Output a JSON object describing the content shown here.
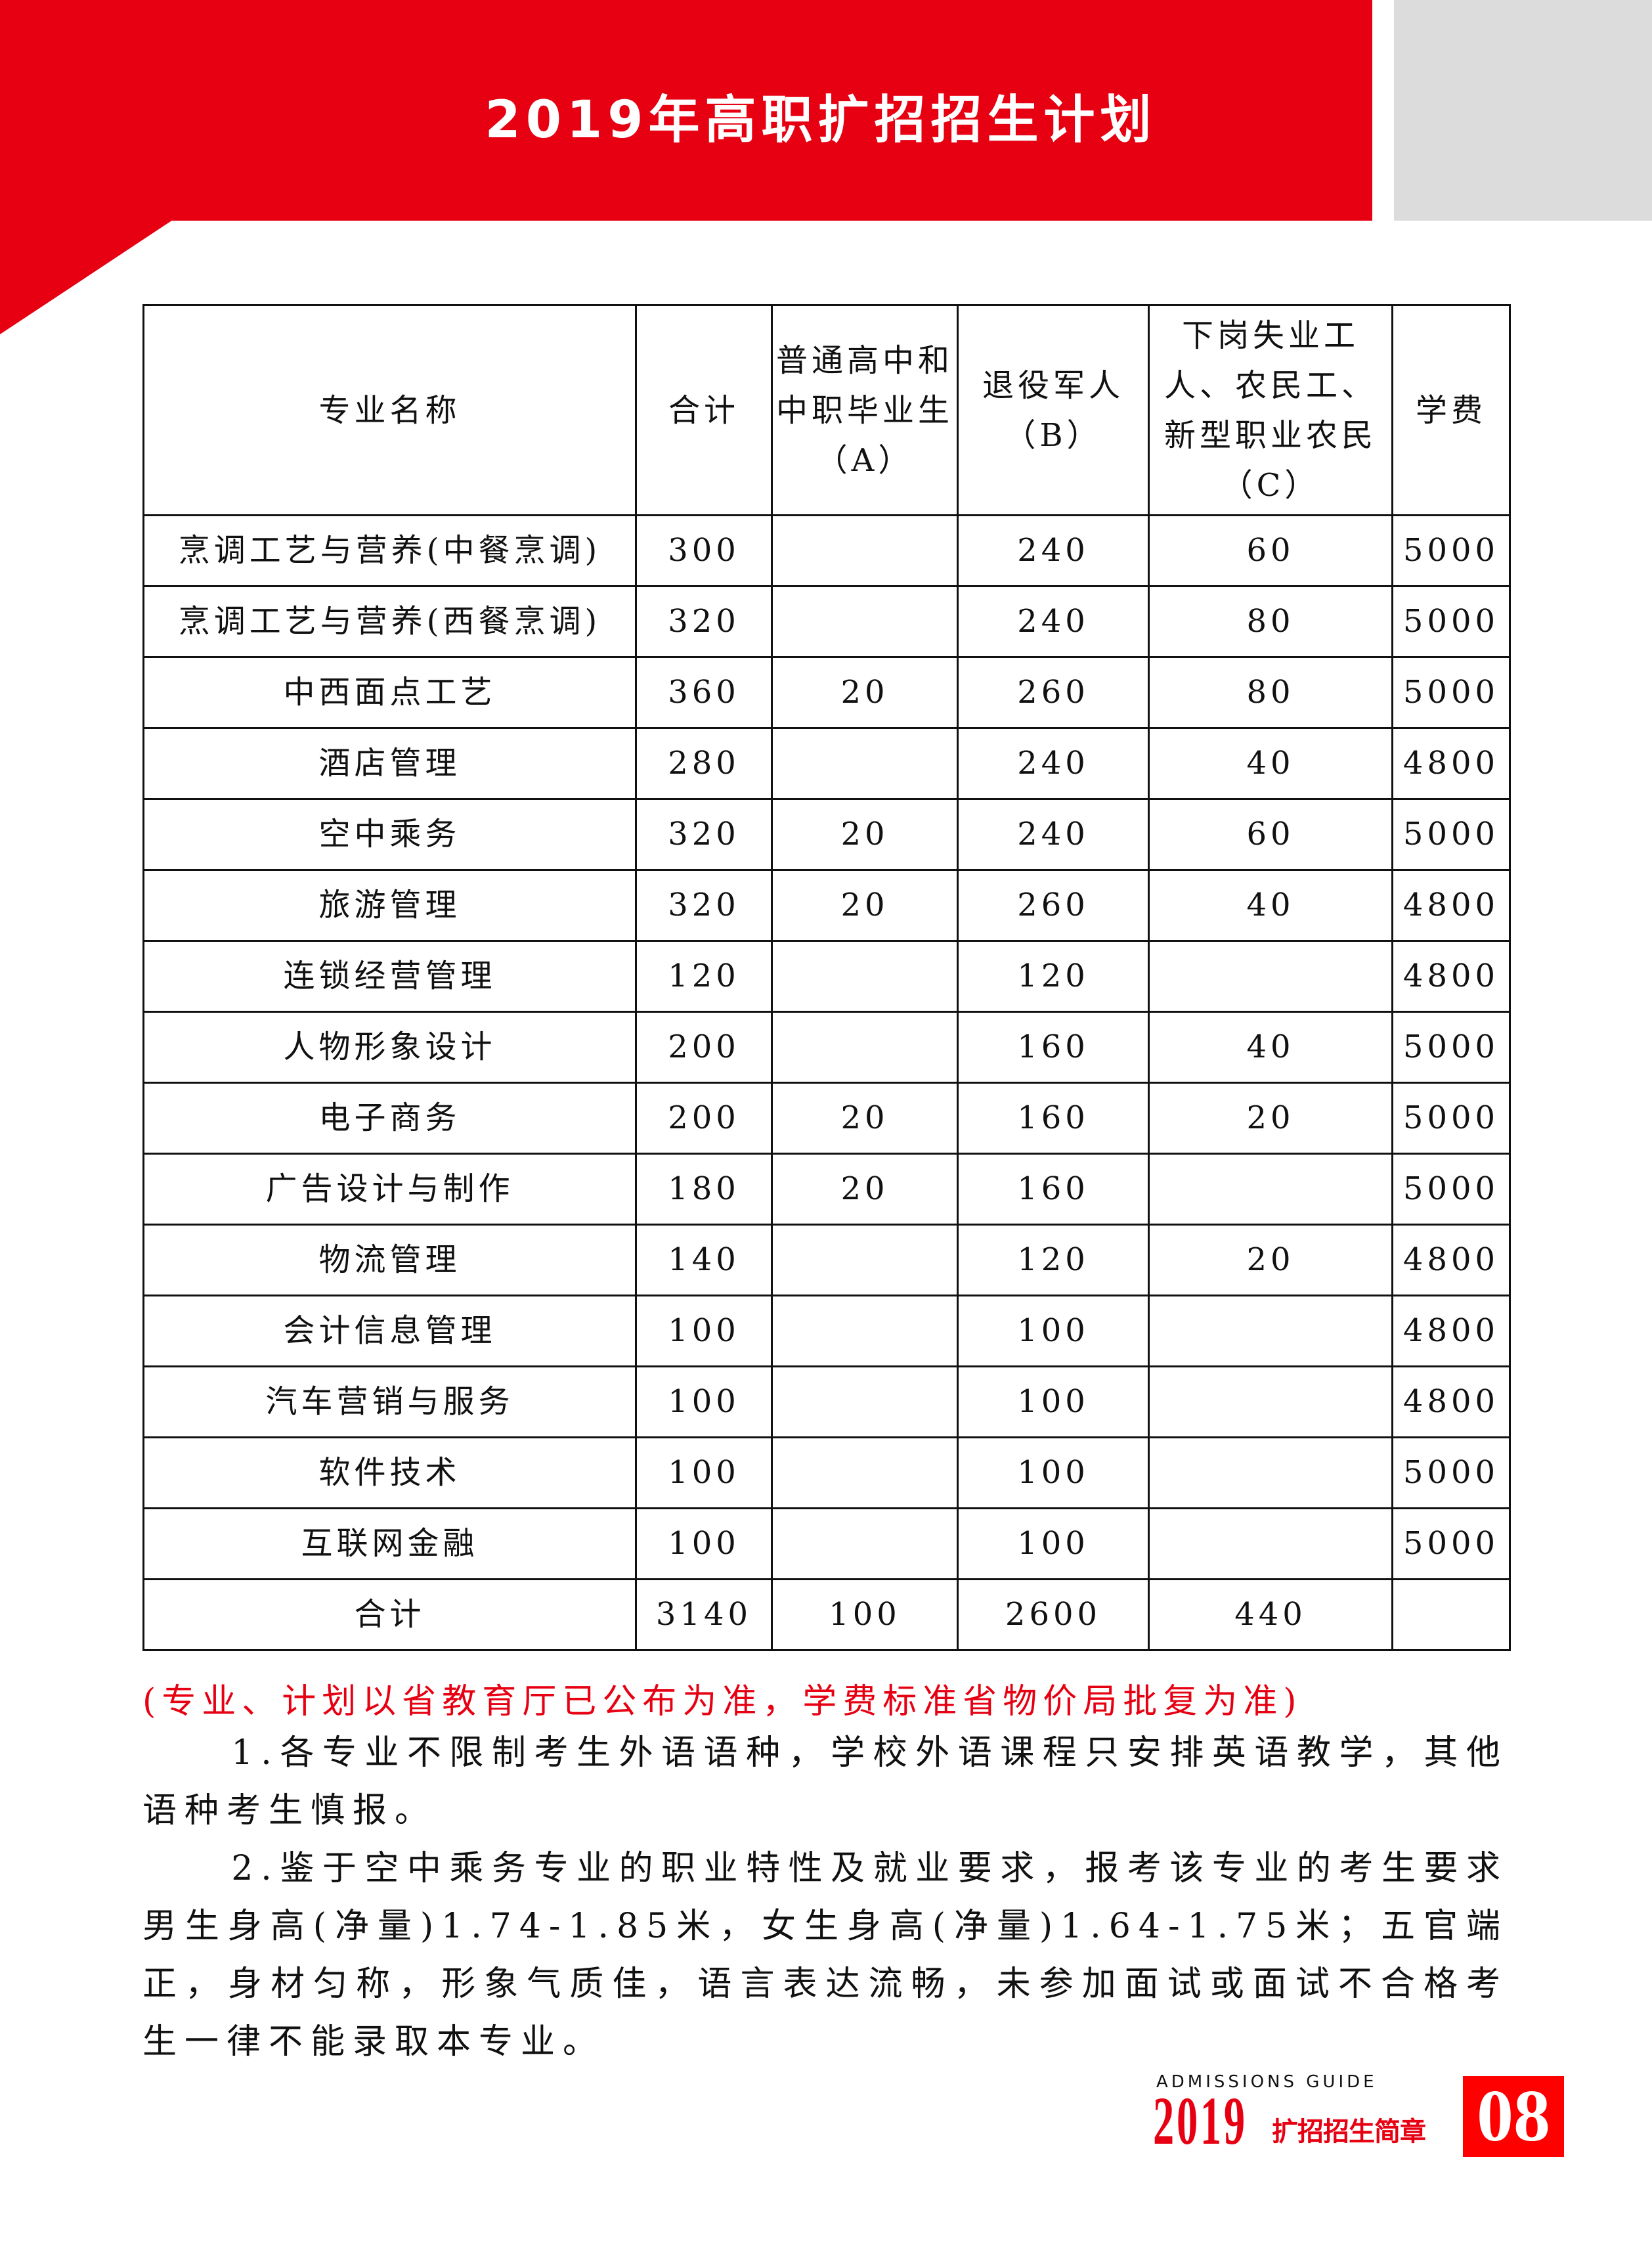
{
  "header": {
    "title": "2019年高职扩招招生计划",
    "accent": "#e60012"
  },
  "table": {
    "columns": [
      "专业名称",
      "合计",
      "普通高中和中职毕业生（A）",
      "退役军人（B）",
      "下岗失业工人、农民工、新型职业农民（C）",
      "学费"
    ],
    "rows": [
      [
        "烹调工艺与营养(中餐烹调)",
        "300",
        "",
        "240",
        "60",
        "5000"
      ],
      [
        "烹调工艺与营养(西餐烹调)",
        "320",
        "",
        "240",
        "80",
        "5000"
      ],
      [
        "中西面点工艺",
        "360",
        "20",
        "260",
        "80",
        "5000"
      ],
      [
        "酒店管理",
        "280",
        "",
        "240",
        "40",
        "4800"
      ],
      [
        "空中乘务",
        "320",
        "20",
        "240",
        "60",
        "5000"
      ],
      [
        "旅游管理",
        "320",
        "20",
        "260",
        "40",
        "4800"
      ],
      [
        "连锁经营管理",
        "120",
        "",
        "120",
        "",
        "4800"
      ],
      [
        "人物形象设计",
        "200",
        "",
        "160",
        "40",
        "5000"
      ],
      [
        "电子商务",
        "200",
        "20",
        "160",
        "20",
        "5000"
      ],
      [
        "广告设计与制作",
        "180",
        "20",
        "160",
        "",
        "5000"
      ],
      [
        "物流管理",
        "140",
        "",
        "120",
        "20",
        "4800"
      ],
      [
        "会计信息管理",
        "100",
        "",
        "100",
        "",
        "4800"
      ],
      [
        "汽车营销与服务",
        "100",
        "",
        "100",
        "",
        "4800"
      ],
      [
        "软件技术",
        "100",
        "",
        "100",
        "",
        "5000"
      ],
      [
        "互联网金融",
        "100",
        "",
        "100",
        "",
        "5000"
      ],
      [
        "合计",
        "3140",
        "100",
        "2600",
        "440",
        ""
      ]
    ]
  },
  "note": "(专业、计划以省教育厅已公布为准，学费标准省物价局批复为准)",
  "paragraphs": [
    "1.各专业不限制考生外语语种，学校外语课程只安排英语教学，其他语种考生慎报。",
    "2.鉴于空中乘务专业的职业特性及就业要求，报考该专业的考生要求男生身高(净量)1.74-1.85米，女生身高(净量)1.64-1.75米；五官端正，身材匀称，形象气质佳，语言表达流畅，未参加面试或面试不合格考生一律不能录取本专业。"
  ],
  "footer": {
    "guide": "ADMISSIONS GUIDE",
    "year": "2019",
    "subtitle": "扩招招生简章",
    "page": "08"
  }
}
